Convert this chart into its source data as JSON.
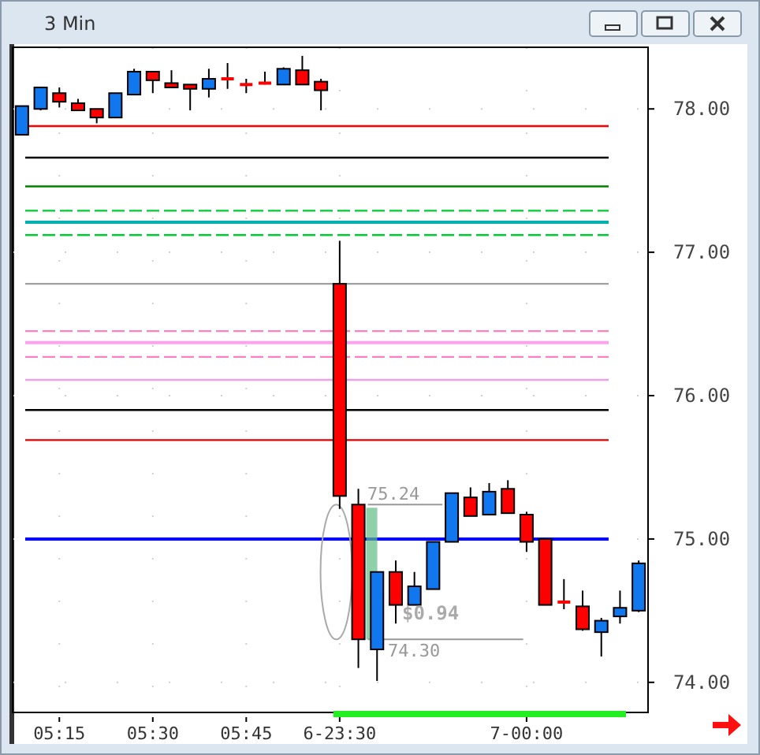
{
  "chart_data": {
    "type": "candlestick",
    "title": "3 Min",
    "categories": [
      null,
      null,
      "05:15",
      null,
      null,
      null,
      null,
      "05:30",
      null,
      null,
      null,
      null,
      "05:45",
      null,
      null,
      null,
      null,
      "6-23:30",
      null,
      null,
      null,
      null,
      null,
      null,
      null,
      null,
      null,
      "7-00:00",
      null,
      null,
      null,
      null,
      null,
      null
    ],
    "ohlc": [
      [
        77.82,
        78.02,
        77.82,
        78.02
      ],
      [
        78.0,
        78.15,
        77.99,
        78.15
      ],
      [
        78.11,
        78.15,
        78.01,
        78.05
      ],
      [
        78.04,
        78.07,
        77.99,
        77.99
      ],
      [
        78.0,
        78.0,
        77.9,
        77.94
      ],
      [
        77.94,
        78.11,
        77.94,
        78.11
      ],
      [
        78.1,
        78.28,
        78.1,
        78.26
      ],
      [
        78.26,
        78.26,
        78.11,
        78.2
      ],
      [
        78.18,
        78.27,
        78.15,
        78.15
      ],
      [
        78.17,
        78.17,
        77.99,
        78.14
      ],
      [
        78.14,
        78.28,
        78.08,
        78.21
      ],
      [
        78.21,
        78.32,
        78.14,
        78.21
      ],
      [
        78.17,
        78.21,
        78.11,
        78.17
      ],
      [
        78.18,
        78.26,
        78.17,
        78.18
      ],
      [
        78.17,
        78.29,
        78.17,
        78.28
      ],
      [
        78.27,
        78.37,
        78.17,
        78.17
      ],
      [
        78.19,
        78.21,
        77.99,
        78.13
      ],
      [
        76.78,
        77.08,
        75.21,
        75.3
      ],
      [
        75.24,
        75.35,
        74.1,
        74.3
      ],
      [
        74.23,
        74.77,
        74.01,
        74.77
      ],
      [
        74.77,
        74.85,
        74.41,
        74.54
      ],
      [
        74.54,
        74.77,
        74.54,
        74.67
      ],
      [
        74.65,
        74.98,
        74.65,
        74.98
      ],
      [
        74.98,
        75.32,
        74.98,
        75.32
      ],
      [
        75.29,
        75.36,
        75.16,
        75.16
      ],
      [
        75.17,
        75.39,
        75.17,
        75.33
      ],
      [
        75.35,
        75.41,
        75.18,
        75.18
      ],
      [
        75.17,
        75.19,
        74.91,
        74.98
      ],
      [
        75.0,
        75.0,
        74.54,
        74.54
      ],
      [
        74.56,
        74.72,
        74.51,
        74.56
      ],
      [
        74.53,
        74.64,
        74.36,
        74.37
      ],
      [
        74.35,
        74.45,
        74.18,
        74.43
      ],
      [
        74.46,
        74.64,
        74.41,
        74.52
      ],
      [
        74.5,
        74.85,
        74.49,
        74.83
      ]
    ],
    "colors": [
      "#1177ee",
      "#1177ee",
      "#ff0000",
      "#ff0000",
      "#ff0000",
      "#1177ee",
      "#1177ee",
      "#ff0000",
      "#ff0000",
      "#ff0000",
      "#1177ee",
      "#ff0000",
      "#ff0000",
      "#ff0000",
      "#1177ee",
      "#ff0000",
      "#ff0000",
      "#ff0000",
      "#ff0000",
      "#1177ee",
      "#ff0000",
      "#1177ee",
      "#1177ee",
      "#1177ee",
      "#ff0000",
      "#1177ee",
      "#ff0000",
      "#ff0000",
      "#ff0000",
      "#ff0000",
      "#ff0000",
      "#1177ee",
      "#1177ee",
      "#1177ee"
    ],
    "ylim": [
      73.79,
      78.43
    ],
    "yticks": [
      {
        "value": 74,
        "label": "74.00"
      },
      {
        "value": 75,
        "label": "75.00"
      },
      {
        "value": 76,
        "label": "76.00"
      },
      {
        "value": 77,
        "label": "77.00"
      },
      {
        "value": 78,
        "label": "78.00"
      }
    ],
    "grid": true,
    "ref_lines": [
      {
        "axis": "y",
        "value": 77.88,
        "color": "#ff0000",
        "line_style": "solid"
      },
      {
        "axis": "y",
        "value": 77.66,
        "color": "#000000",
        "line_style": "solid"
      },
      {
        "axis": "y",
        "value": 77.46,
        "color": "#008000",
        "line_style": "solid"
      },
      {
        "axis": "y",
        "value": 77.29,
        "color": "#00cc33",
        "line_style": "dashed"
      },
      {
        "axis": "y",
        "value": 77.21,
        "color": "#00b0b0",
        "line_style": "solid"
      },
      {
        "axis": "y",
        "value": 77.12,
        "color": "#00cc33",
        "line_style": "dashed"
      },
      {
        "axis": "y",
        "value": 76.78,
        "color": "#a0a0a0",
        "line_style": "solid"
      },
      {
        "axis": "y",
        "value": 76.45,
        "color": "#ff80c0",
        "line_style": "dashed"
      },
      {
        "axis": "y",
        "value": 76.37,
        "color": "#ffa0f0",
        "line_style": "solid"
      },
      {
        "axis": "y",
        "value": 76.27,
        "color": "#ff80c0",
        "line_style": "dashed"
      },
      {
        "axis": "y",
        "value": 76.11,
        "color": "#f0a0e8",
        "line_style": "solid"
      },
      {
        "axis": "y",
        "value": 75.9,
        "color": "#000000",
        "line_style": "solid"
      },
      {
        "axis": "y",
        "value": 75.69,
        "color": "#e00000",
        "line_style": "solid"
      },
      {
        "axis": "y",
        "value": 75.0,
        "color": "#0000ff",
        "line_style": "solid"
      }
    ],
    "annotations": [
      "75.24",
      "$0.94",
      "74.30"
    ]
  }
}
